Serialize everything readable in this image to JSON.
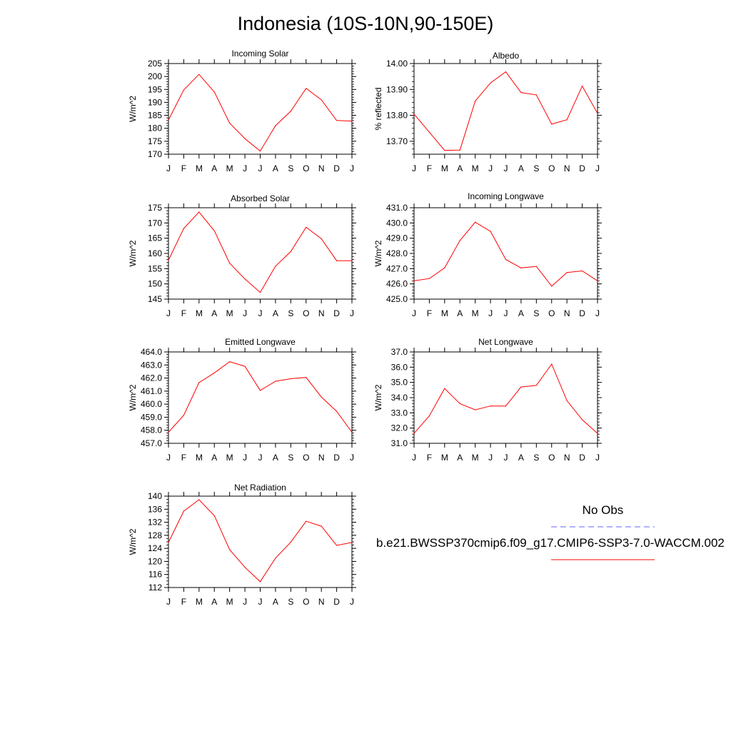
{
  "figure_title": "Indonesia (10S-10N,90-150E)",
  "legend": {
    "obs_label": "No Obs",
    "model_label": "b.e21.BWSSP370cmip6.f09_g17.CMIP6-SSP3-7.0-WACCM.002",
    "obs_color": "#6666ff",
    "model_color": "#ff0000"
  },
  "chart_data": [
    {
      "type": "line",
      "title": "Incoming Solar",
      "ylabel": "W/m^2",
      "categories": [
        "J",
        "F",
        "M",
        "A",
        "M",
        "J",
        "J",
        "A",
        "S",
        "O",
        "N",
        "D",
        "J"
      ],
      "values": [
        183.2,
        194.8,
        200.8,
        194.0,
        182.0,
        176.0,
        171.2,
        181.0,
        186.6,
        195.4,
        191.0,
        183.0,
        182.8
      ],
      "ylim": [
        170,
        205
      ],
      "yticks": [
        "170",
        "175",
        "180",
        "185",
        "190",
        "195",
        "200",
        "205"
      ],
      "ytick_values": [
        170,
        175,
        180,
        185,
        190,
        195,
        200,
        205
      ],
      "minor_step": 1
    },
    {
      "type": "line",
      "title": "Albedo",
      "ylabel": "% reflected",
      "categories": [
        "J",
        "F",
        "M",
        "A",
        "M",
        "J",
        "J",
        "A",
        "S",
        "O",
        "N",
        "D",
        "J"
      ],
      "values": [
        13.805,
        13.735,
        13.665,
        13.666,
        13.855,
        13.925,
        13.968,
        13.888,
        13.879,
        13.766,
        13.783,
        13.913,
        13.808
      ],
      "ylim": [
        13.65,
        14.0
      ],
      "yticks": [
        "13.70",
        "13.80",
        "13.90",
        "14.00"
      ],
      "ytick_values": [
        13.7,
        13.8,
        13.9,
        14.0
      ],
      "minor_step": 0.02
    },
    {
      "type": "line",
      "title": "Absorbed Solar",
      "ylabel": "W/m^2",
      "categories": [
        "J",
        "F",
        "M",
        "A",
        "M",
        "J",
        "J",
        "A",
        "S",
        "O",
        "N",
        "D",
        "J"
      ],
      "values": [
        157.8,
        168.2,
        173.6,
        167.4,
        156.8,
        151.6,
        147.2,
        155.8,
        160.6,
        168.6,
        164.8,
        157.6,
        157.6
      ],
      "ylim": [
        145,
        175
      ],
      "yticks": [
        "145",
        "150",
        "155",
        "160",
        "165",
        "170",
        "175"
      ],
      "ytick_values": [
        145,
        150,
        155,
        160,
        165,
        170,
        175
      ],
      "minor_step": 1
    },
    {
      "type": "line",
      "title": "Incoming Longwave",
      "ylabel": "W/m^2",
      "categories": [
        "J",
        "F",
        "M",
        "A",
        "M",
        "J",
        "J",
        "A",
        "S",
        "O",
        "N",
        "D",
        "J"
      ],
      "values": [
        426.2,
        426.35,
        427.05,
        428.85,
        430.05,
        429.45,
        427.6,
        427.05,
        427.15,
        425.85,
        426.75,
        426.85,
        426.2
      ],
      "ylim": [
        425.0,
        431.0
      ],
      "yticks": [
        "425.0",
        "426.0",
        "427.0",
        "428.0",
        "429.0",
        "430.0",
        "431.0"
      ],
      "ytick_values": [
        425,
        426,
        427,
        428,
        429,
        430,
        431
      ],
      "minor_step": 0.2
    },
    {
      "type": "line",
      "title": "Emitted Longwave",
      "ylabel": "W/m^2",
      "categories": [
        "J",
        "F",
        "M",
        "A",
        "M",
        "J",
        "J",
        "A",
        "S",
        "O",
        "N",
        "D",
        "J"
      ],
      "values": [
        457.85,
        459.15,
        461.65,
        462.4,
        463.25,
        462.9,
        461.05,
        461.75,
        461.95,
        462.05,
        460.55,
        459.45,
        457.85
      ],
      "ylim": [
        457.0,
        464.0
      ],
      "yticks": [
        "457.0",
        "458.0",
        "459.0",
        "460.0",
        "461.0",
        "462.0",
        "463.0",
        "464.0"
      ],
      "ytick_values": [
        457,
        458,
        459,
        460,
        461,
        462,
        463,
        464
      ],
      "minor_step": 0.2
    },
    {
      "type": "line",
      "title": "Net Longwave",
      "ylabel": "W/m^2",
      "categories": [
        "J",
        "F",
        "M",
        "A",
        "M",
        "J",
        "J",
        "A",
        "S",
        "O",
        "N",
        "D",
        "J"
      ],
      "values": [
        31.65,
        32.8,
        34.6,
        33.6,
        33.2,
        33.45,
        33.45,
        34.7,
        34.8,
        36.2,
        33.8,
        32.55,
        31.65
      ],
      "ylim": [
        31.0,
        37.0
      ],
      "yticks": [
        "31.0",
        "32.0",
        "33.0",
        "34.0",
        "35.0",
        "36.0",
        "37.0"
      ],
      "ytick_values": [
        31,
        32,
        33,
        34,
        35,
        36,
        37
      ],
      "minor_step": 0.2
    },
    {
      "type": "line",
      "title": "Net Radiation",
      "ylabel": "W/m^2",
      "categories": [
        "J",
        "F",
        "M",
        "A",
        "M",
        "J",
        "J",
        "A",
        "S",
        "O",
        "N",
        "D",
        "J"
      ],
      "values": [
        125.8,
        135.4,
        138.9,
        134.0,
        123.6,
        118.2,
        113.8,
        121.0,
        125.9,
        132.3,
        130.8,
        124.9,
        125.8
      ],
      "ylim": [
        112,
        140
      ],
      "yticks": [
        "112",
        "116",
        "120",
        "124",
        "128",
        "132",
        "136",
        "140"
      ],
      "ytick_values": [
        112,
        116,
        120,
        124,
        128,
        132,
        136,
        140
      ],
      "minor_step": 1
    }
  ]
}
